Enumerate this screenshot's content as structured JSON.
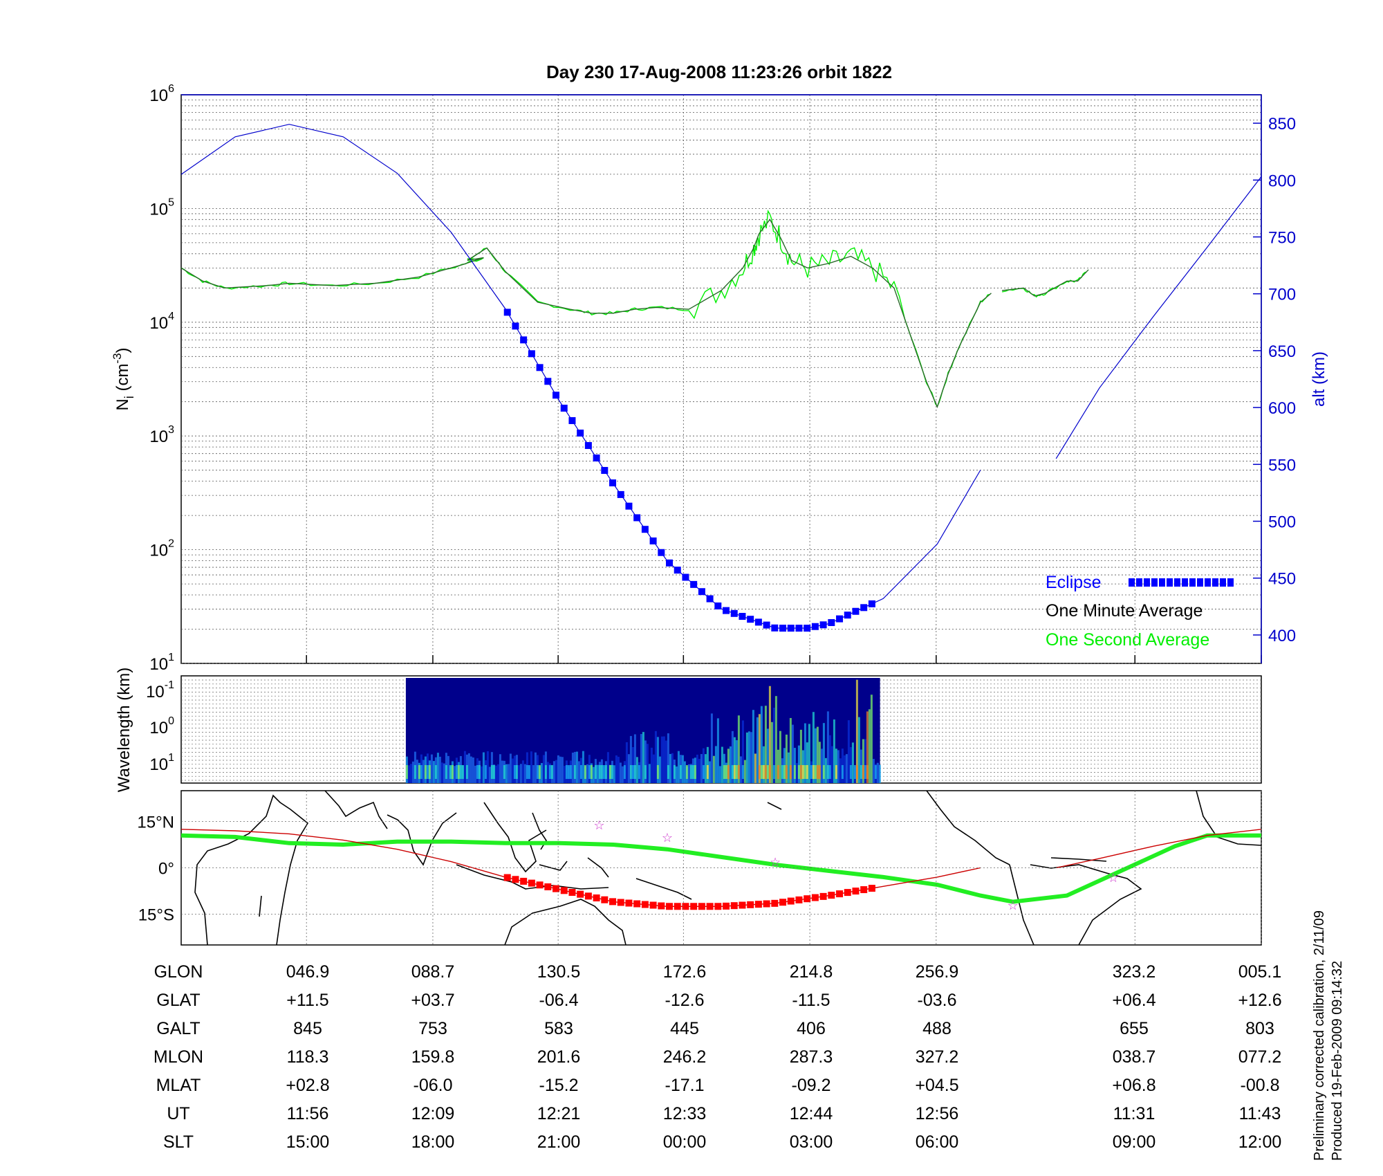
{
  "title": "Day 230  17-Aug-2008 11:23:26   orbit 1822",
  "footnote": {
    "line1": "Preliminary corrected calibration, 2/11/09",
    "line2": "Produced 19-Feb-2009 09:14:32"
  },
  "colors": {
    "altitude": "#0000cc",
    "eclipse": "#0000ff",
    "minute_avg": "#000000",
    "second_avg": "#00ee00",
    "track": "#cc0000",
    "track_eclipse": "#ff0000",
    "magnetic_equator": "#22ee22",
    "stars": "#cc33cc",
    "spectrogram_bg": "#00008b"
  },
  "chart_data": [
    {
      "type": "line",
      "panel": "density",
      "ylabel": "N",
      "ylabel_sub": "i",
      "ylabel_unit_pre": " (cm",
      "ylabel_unit_sup": "-3",
      "ylabel_unit_post": ")",
      "yscale": "log",
      "ylim": [
        10,
        1000000
      ],
      "yticks": [
        {
          "base": "10",
          "exp": "1"
        },
        {
          "base": "10",
          "exp": "2"
        },
        {
          "base": "10",
          "exp": "3"
        },
        {
          "base": "10",
          "exp": "4"
        },
        {
          "base": "10",
          "exp": "5"
        },
        {
          "base": "10",
          "exp": "6"
        }
      ],
      "y2label": "alt (km)",
      "y2lim": [
        375,
        875
      ],
      "y2ticks": [
        "400",
        "450",
        "500",
        "550",
        "600",
        "650",
        "700",
        "750",
        "800",
        "850"
      ],
      "x_ticks": [
        "046.9",
        "088.7",
        "130.5",
        "172.6",
        "214.8",
        "256.9",
        "323.2",
        "005.1"
      ],
      "legend": [
        {
          "label": "Eclipse",
          "color": "#0000ff",
          "marker": "squares"
        },
        {
          "label": "One Minute Average",
          "color": "#000000",
          "marker": "none"
        },
        {
          "label": "One Second Average",
          "color": "#00ee00",
          "marker": "none"
        }
      ],
      "series": [
        {
          "name": "One Minute Average",
          "x_frac": [
            0.0,
            0.02,
            0.04,
            0.08,
            0.1,
            0.14,
            0.18,
            0.22,
            0.26,
            0.28,
            0.265,
            0.283,
            0.3,
            0.33,
            0.36,
            0.38,
            0.4,
            0.42,
            0.44,
            0.47,
            0.5,
            0.52,
            0.53,
            0.535,
            0.545,
            0.555,
            0.565,
            0.58,
            0.6,
            0.62,
            0.64,
            0.66,
            0.69,
            0.7,
            0.71,
            0.72,
            0.74,
            0.75,
            0.76,
            0.78,
            0.79,
            0.8,
            0.82,
            0.83,
            0.84
          ],
          "y": [
            30000,
            23000,
            20000,
            21000,
            22000,
            21000,
            22000,
            25000,
            32000,
            37000,
            35000,
            45000,
            28000,
            15000,
            13000,
            12000,
            12000,
            13000,
            13500,
            13000,
            19000,
            30000,
            45000,
            60000,
            80000,
            55000,
            35000,
            30000,
            33000,
            38000,
            30000,
            20000,
            3000,
            1800,
            3500,
            6000,
            15000,
            18000,
            19000,
            20000,
            17000,
            18000,
            23000,
            23000,
            29000
          ],
          "gap_after_index": 37,
          "values_note": ""
        },
        {
          "name": "altitude",
          "axis": "right",
          "x_frac": [
            0.0,
            0.05,
            0.1,
            0.15,
            0.2,
            0.25,
            0.3,
            0.35,
            0.4,
            0.45,
            0.5,
            0.55,
            0.58,
            0.6,
            0.65,
            0.7,
            0.74
          ],
          "y": [
            805,
            838,
            849,
            838,
            806,
            754,
            687,
            606,
            533,
            465,
            423,
            406,
            406,
            410,
            432,
            480,
            545
          ],
          "gap_after_index": 16
        },
        {
          "name": "altitude (after gap)",
          "axis": "right",
          "x_frac": [
            0.81,
            0.85,
            0.9,
            0.95,
            1.0
          ],
          "y": [
            555,
            617,
            680,
            741,
            803
          ]
        },
        {
          "name": "Eclipse",
          "axis": "right",
          "x_range_frac": [
            0.302,
            0.646
          ]
        }
      ]
    },
    {
      "type": "heatmap",
      "panel": "spectrogram",
      "ylabel": "Wavelength (km)",
      "yticks": [
        {
          "base": "10",
          "exp": "-1"
        },
        {
          "base": "10",
          "exp": "0"
        },
        {
          "base": "10",
          "exp": "1"
        }
      ],
      "x_range_frac": [
        0.208,
        0.647
      ]
    },
    {
      "type": "map",
      "panel": "ground_track",
      "yticks": [
        "15°N",
        "0°",
        "15°S"
      ],
      "ylim": [
        -25,
        25
      ],
      "series": [
        {
          "name": "magnetic equator",
          "x_frac": [
            0.0,
            0.05,
            0.1,
            0.15,
            0.2,
            0.25,
            0.3,
            0.35,
            0.4,
            0.45,
            0.5,
            0.55,
            0.6,
            0.65,
            0.7,
            0.74,
            0.77,
            0.82,
            0.87,
            0.92,
            0.95,
            1.0
          ],
          "y": [
            10.5,
            10,
            8,
            7.5,
            8.5,
            8.5,
            8,
            8,
            7.5,
            6,
            3.5,
            1,
            -1,
            -3,
            -5.5,
            -9,
            -11,
            -9,
            -1,
            7,
            10.5,
            10.5
          ]
        },
        {
          "name": "ground track",
          "x_frac": [
            0.0,
            0.05,
            0.1,
            0.15,
            0.2,
            0.25,
            0.3,
            0.35,
            0.4,
            0.45,
            0.5,
            0.55,
            0.6,
            0.65,
            0.7,
            0.74
          ],
          "y": [
            12.5,
            12,
            11,
            9,
            6,
            2,
            -3,
            -7,
            -11,
            -12.5,
            -12.5,
            -11.5,
            -9,
            -6,
            -3,
            0
          ],
          "gap_after_index": 15
        },
        {
          "name": "ground track (after gap)",
          "x_frac": [
            0.81,
            0.85,
            0.9,
            0.95,
            1.0
          ],
          "y": [
            0,
            3,
            7,
            10.5,
            12.5
          ]
        },
        {
          "name": "track eclipse",
          "x_range_frac": [
            0.302,
            0.646
          ]
        },
        {
          "name": "stars",
          "x_frac": [
            0.387,
            0.45,
            0.55,
            0.77,
            0.863
          ],
          "y": [
            14,
            10,
            2,
            -12,
            -3
          ]
        }
      ]
    }
  ],
  "table": {
    "rows": [
      {
        "label": "GLON",
        "values": [
          "046.9",
          "088.7",
          "130.5",
          "172.6",
          "214.8",
          "256.9",
          "323.2",
          "005.1"
        ]
      },
      {
        "label": "GLAT",
        "values": [
          "+11.5",
          "+03.7",
          "-06.4",
          "-12.6",
          "-11.5",
          "-03.6",
          "+06.4",
          "+12.6"
        ]
      },
      {
        "label": "GALT",
        "values": [
          "845",
          "753",
          "583",
          "445",
          "406",
          "488",
          "655",
          "803"
        ]
      },
      {
        "label": "MLON",
        "values": [
          "118.3",
          "159.8",
          "201.6",
          "246.2",
          "287.3",
          "327.2",
          "038.7",
          "077.2"
        ]
      },
      {
        "label": "MLAT",
        "values": [
          "+02.8",
          "-06.0",
          "-15.2",
          "-17.1",
          "-09.2",
          "+04.5",
          "+06.8",
          "-00.8"
        ]
      },
      {
        "label": "UT",
        "values": [
          "11:56",
          "12:09",
          "12:21",
          "12:33",
          "12:44",
          "12:56",
          "11:31",
          "11:43"
        ]
      },
      {
        "label": "SLT",
        "values": [
          "15:00",
          "18:00",
          "21:00",
          "00:00",
          "03:00",
          "06:00",
          "09:00",
          "12:00"
        ]
      }
    ]
  }
}
